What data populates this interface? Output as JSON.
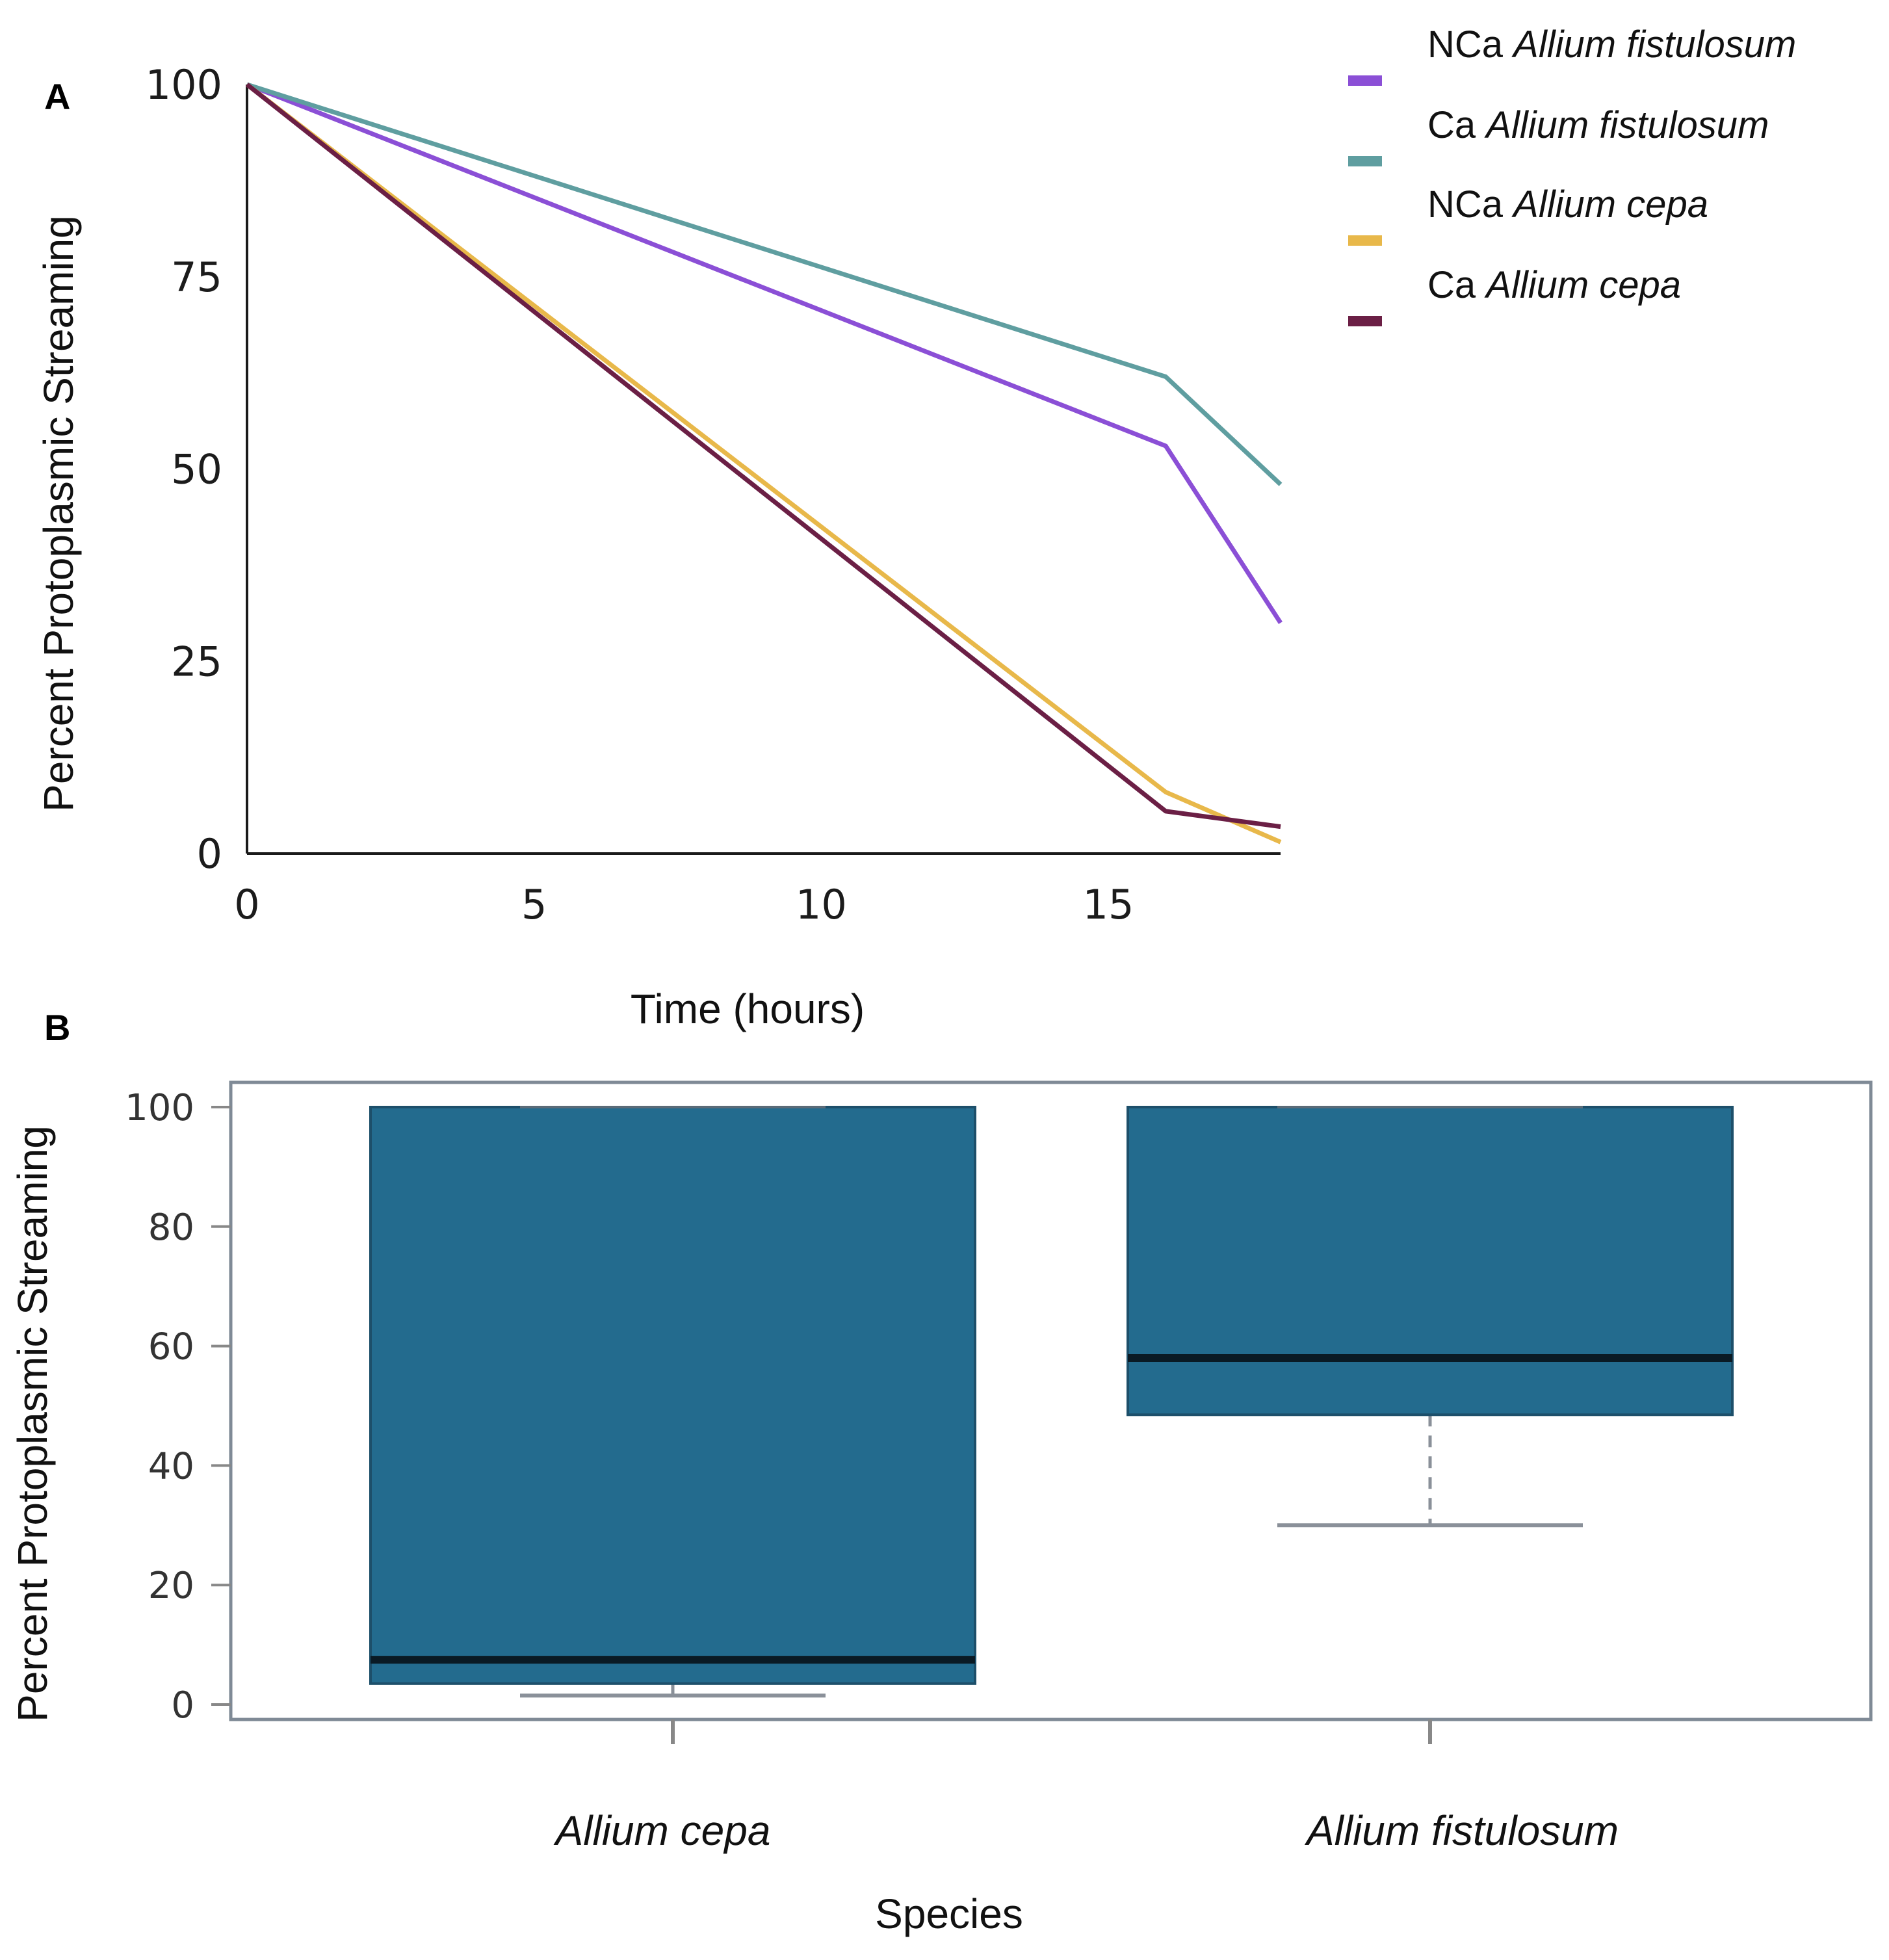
{
  "chart_data": [
    {
      "panel": "A",
      "type": "line",
      "xlabel": "Time (hours)",
      "ylabel": "Percent Protoplasmic Streaming",
      "xlim": [
        0,
        18
      ],
      "ylim": [
        0,
        100
      ],
      "xticks": [
        "0",
        "5",
        "10",
        "15"
      ],
      "yticks": [
        "0",
        "25",
        "50",
        "75",
        "100"
      ],
      "grid": false,
      "legend_position": "top-right outside",
      "x": [
        0,
        16,
        18
      ],
      "series": [
        {
          "prefix": "NCa",
          "name": "Allium fistulosum",
          "color": "#8b4fd6",
          "values": [
            100,
            53,
            30
          ]
        },
        {
          "prefix": "Ca",
          "name": "Allium fistulosum",
          "color": "#5f9ea0",
          "values": [
            100,
            62,
            48
          ]
        },
        {
          "prefix": "NCa",
          "name": "Allium cepa",
          "color": "#e8b84a",
          "values": [
            100,
            8,
            1.5
          ]
        },
        {
          "prefix": "Ca",
          "name": "Allium cepa",
          "color": "#6b1f45",
          "values": [
            100,
            5.5,
            3.5
          ]
        }
      ]
    },
    {
      "panel": "B",
      "type": "box",
      "xlabel": "Species",
      "ylabel": "Percent Protoplasmic Streaming",
      "ylim": [
        0,
        100
      ],
      "yticks": [
        "0",
        "20",
        "40",
        "60",
        "80",
        "100"
      ],
      "box_color": "#236b8e",
      "categories": [
        "Allium cepa",
        "Allium fistulosum"
      ],
      "boxes": [
        {
          "min": 1.5,
          "q1": 3.5,
          "median": 7.5,
          "q3": 100,
          "max": 100
        },
        {
          "min": 30,
          "q1": 48.5,
          "median": 58,
          "q3": 100,
          "max": 100
        }
      ]
    }
  ]
}
